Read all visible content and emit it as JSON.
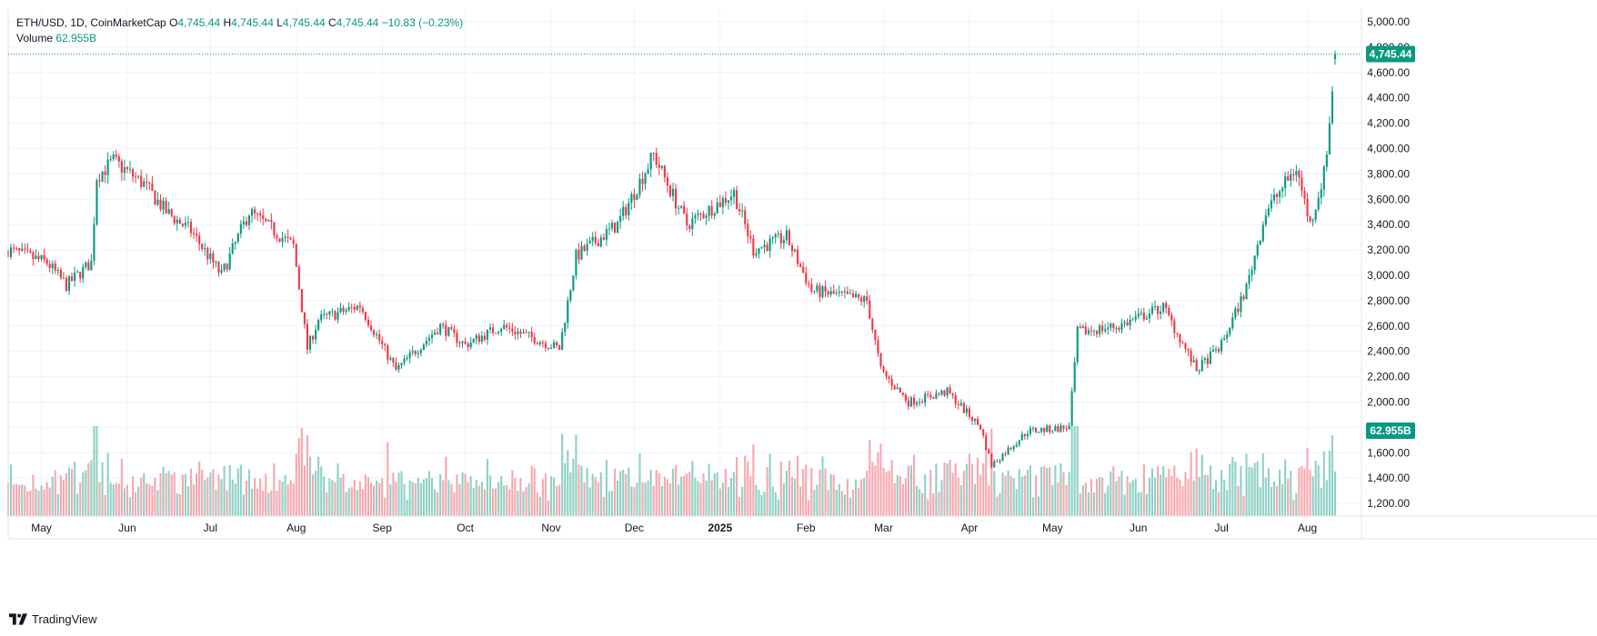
{
  "legend": {
    "symbol": "ETH/USD",
    "interval": "1D",
    "source": "CoinMarketCap",
    "open_label": "O",
    "open": "4,745.44",
    "high_label": "H",
    "high": "4,745.44",
    "low_label": "L",
    "low": "4,745.44",
    "close_label": "C",
    "close": "4,745.44",
    "change": "−10.83 (−0.23%)",
    "volume_label": "Volume",
    "volume": "62.955B"
  },
  "footer": {
    "brand": "TradingView",
    "logo_icon": "tradingview-logo-icon"
  },
  "colors": {
    "up": "#089981",
    "down": "#f23645",
    "up_volume": "#90d1c5",
    "down_volume": "#f6a8ae",
    "grid": "#f0f3fa"
  },
  "chart_data": {
    "type": "candlestick",
    "symbol": "ETH/USD",
    "interval": "1D",
    "ylim": [
      1100,
      5100
    ],
    "y_ticks": [
      1200,
      1400,
      1600,
      1800,
      2000,
      2200,
      2400,
      2600,
      2800,
      3000,
      3200,
      3400,
      3600,
      3800,
      4000,
      4200,
      4400,
      4600,
      4800,
      5000
    ],
    "y_tick_labels": [
      "1,200.00",
      "1,400.00",
      "1,600.00",
      "1,800.00",
      "2,000.00",
      "2,200.00",
      "2,400.00",
      "2,600.00",
      "2,800.00",
      "3,000.00",
      "3,200.00",
      "3,400.00",
      "3,600.00",
      "3,800.00",
      "4,000.00",
      "4,200.00",
      "4,400.00",
      "4,600.00",
      "4,800.00",
      "5,000.00"
    ],
    "x_range": [
      "2024-04-19",
      "2025-08-11"
    ],
    "x_ticks": [
      {
        "date": "2024-05-01",
        "label": "May"
      },
      {
        "date": "2024-06-01",
        "label": "Jun"
      },
      {
        "date": "2024-07-01",
        "label": "Jul"
      },
      {
        "date": "2024-08-01",
        "label": "Aug"
      },
      {
        "date": "2024-09-01",
        "label": "Sep"
      },
      {
        "date": "2024-10-01",
        "label": "Oct"
      },
      {
        "date": "2024-11-01",
        "label": "Nov"
      },
      {
        "date": "2024-12-01",
        "label": "Dec"
      },
      {
        "date": "2025-01-01",
        "label": "2025"
      },
      {
        "date": "2025-02-01",
        "label": "Feb"
      },
      {
        "date": "2025-03-01",
        "label": "Mar"
      },
      {
        "date": "2025-04-01",
        "label": "Apr"
      },
      {
        "date": "2025-05-01",
        "label": "May"
      },
      {
        "date": "2025-06-01",
        "label": "Jun"
      },
      {
        "date": "2025-07-01",
        "label": "Jul"
      },
      {
        "date": "2025-08-01",
        "label": "Aug"
      }
    ],
    "close_keypoints": [
      {
        "date": "2024-04-19",
        "close": 3200
      },
      {
        "date": "2024-04-26",
        "close": 3150
      },
      {
        "date": "2024-05-03",
        "close": 3100
      },
      {
        "date": "2024-05-10",
        "close": 2920
      },
      {
        "date": "2024-05-19",
        "close": 3100
      },
      {
        "date": "2024-05-21",
        "close": 3780
      },
      {
        "date": "2024-05-27",
        "close": 3900
      },
      {
        "date": "2024-06-07",
        "close": 3720
      },
      {
        "date": "2024-06-15",
        "close": 3500
      },
      {
        "date": "2024-06-24",
        "close": 3350
      },
      {
        "date": "2024-07-05",
        "close": 3000
      },
      {
        "date": "2024-07-15",
        "close": 3500
      },
      {
        "date": "2024-07-24",
        "close": 3350
      },
      {
        "date": "2024-07-31",
        "close": 3230
      },
      {
        "date": "2024-08-05",
        "close": 2420
      },
      {
        "date": "2024-08-09",
        "close": 2650
      },
      {
        "date": "2024-08-24",
        "close": 2760
      },
      {
        "date": "2024-09-06",
        "close": 2250
      },
      {
        "date": "2024-09-22",
        "close": 2600
      },
      {
        "date": "2024-10-01",
        "close": 2450
      },
      {
        "date": "2024-10-14",
        "close": 2600
      },
      {
        "date": "2024-10-26",
        "close": 2500
      },
      {
        "date": "2024-11-04",
        "close": 2420
      },
      {
        "date": "2024-11-10",
        "close": 3150
      },
      {
        "date": "2024-11-25",
        "close": 3400
      },
      {
        "date": "2024-12-08",
        "close": 3950
      },
      {
        "date": "2024-12-20",
        "close": 3400
      },
      {
        "date": "2025-01-06",
        "close": 3650
      },
      {
        "date": "2025-01-13",
        "close": 3200
      },
      {
        "date": "2025-01-25",
        "close": 3300
      },
      {
        "date": "2025-02-03",
        "close": 2880
      },
      {
        "date": "2025-02-23",
        "close": 2800
      },
      {
        "date": "2025-02-28",
        "close": 2250
      },
      {
        "date": "2025-03-10",
        "close": 2000
      },
      {
        "date": "2025-03-24",
        "close": 2080
      },
      {
        "date": "2025-04-05",
        "close": 1800
      },
      {
        "date": "2025-04-09",
        "close": 1500
      },
      {
        "date": "2025-04-22",
        "close": 1770
      },
      {
        "date": "2025-05-07",
        "close": 1800
      },
      {
        "date": "2025-05-10",
        "close": 2550
      },
      {
        "date": "2025-05-25",
        "close": 2600
      },
      {
        "date": "2025-06-10",
        "close": 2750
      },
      {
        "date": "2025-06-22",
        "close": 2250
      },
      {
        "date": "2025-07-01",
        "close": 2450
      },
      {
        "date": "2025-07-10",
        "close": 2900
      },
      {
        "date": "2025-07-17",
        "close": 3500
      },
      {
        "date": "2025-07-28",
        "close": 3850
      },
      {
        "date": "2025-08-02",
        "close": 3400
      },
      {
        "date": "2025-08-07",
        "close": 3800
      },
      {
        "date": "2025-08-09",
        "close": 4200
      },
      {
        "date": "2025-08-11",
        "close": 4745.44
      }
    ],
    "last_price": 4745.44,
    "last_price_label": "4,745.44",
    "last_volume_label": "62.955B"
  }
}
